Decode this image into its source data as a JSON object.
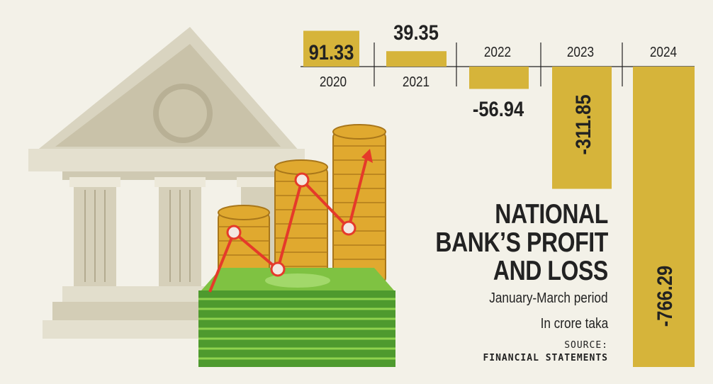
{
  "headline": {
    "line1": "NATIONAL",
    "line2": "BANK’S PROFIT",
    "line3": "AND LOSS"
  },
  "subtitle": "January-March period",
  "units": "In crore taka",
  "source": {
    "label": "SOURCE:",
    "name": "FINANCIAL STATEMENTS"
  },
  "colors": {
    "bar": "#d6b43a",
    "background": "#f3f1e8",
    "text": "#222222"
  },
  "chart_data": {
    "type": "bar",
    "categories": [
      "2020",
      "2021",
      "2022",
      "2023",
      "2024"
    ],
    "values": [
      91.33,
      39.35,
      -56.94,
      -311.85,
      -766.29
    ],
    "value_labels": [
      "91.33",
      "39.35",
      "-56.94",
      "-311.85",
      "-766.29"
    ],
    "ylim": [
      -766.29,
      91.33
    ],
    "grid": false,
    "legend": "none"
  }
}
